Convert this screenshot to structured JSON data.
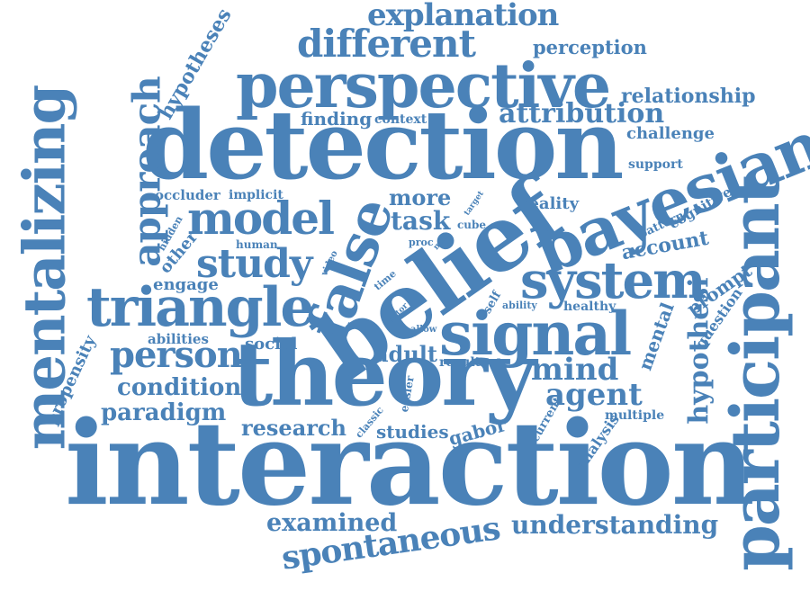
{
  "color": "#4a82b8",
  "words": {
    "interaction": "interaction",
    "detection": "detection",
    "theory": "theory",
    "belief": "belief",
    "perspective": "perspective",
    "bayesian": "bayesian",
    "participant": "participant",
    "mentalizing": "mentalizing",
    "triangle": "triangle",
    "signal": "signal",
    "system": "system",
    "model": "model",
    "false": "false",
    "study": "study",
    "approach": "approach",
    "different": "different",
    "explanation": "explanation",
    "person": "person",
    "spontaneous": "spontaneous",
    "mind": "mind",
    "agent": "agent",
    "attribution": "attribution",
    "hypothesi": "hypothesi",
    "understanding": "understanding",
    "examined": "examined",
    "condition": "condition",
    "paradigm": "paradigm",
    "research": "research",
    "task": "task",
    "more": "more",
    "relationship": "relationship",
    "perception": "perception",
    "hypotheses": "hypotheses",
    "adult": "adult",
    "account": "account",
    "studies": "studies",
    "gabor": "gabor",
    "challenge": "challenge",
    "finding": "finding",
    "context": "context",
    "engage": "engage",
    "other": "other",
    "propensity": "propensity",
    "abilities": "abilities",
    "social": "social",
    "prompt": "prompt",
    "question": "question",
    "mental": "mental",
    "analysis": "analysis",
    "multiple": "multiple",
    "occluder": "occluder",
    "implicit": "implicit",
    "reality": "reality",
    "cognitive": "cognitive",
    "pattern": "pattern",
    "support": "support",
    "healthy": "healthy",
    "result": "result",
    "current": "current",
    "easier": "easier",
    "classic": "classic",
    "self": "self",
    "ability": "ability",
    "allow": "allow",
    "actor": "actor",
    "time": "time",
    "data": "data",
    "video": "video",
    "proc": "proc",
    "mirs": "mirs",
    "human": "human",
    "hidden": "hidden",
    "cube": "cube",
    "target": "target"
  }
}
